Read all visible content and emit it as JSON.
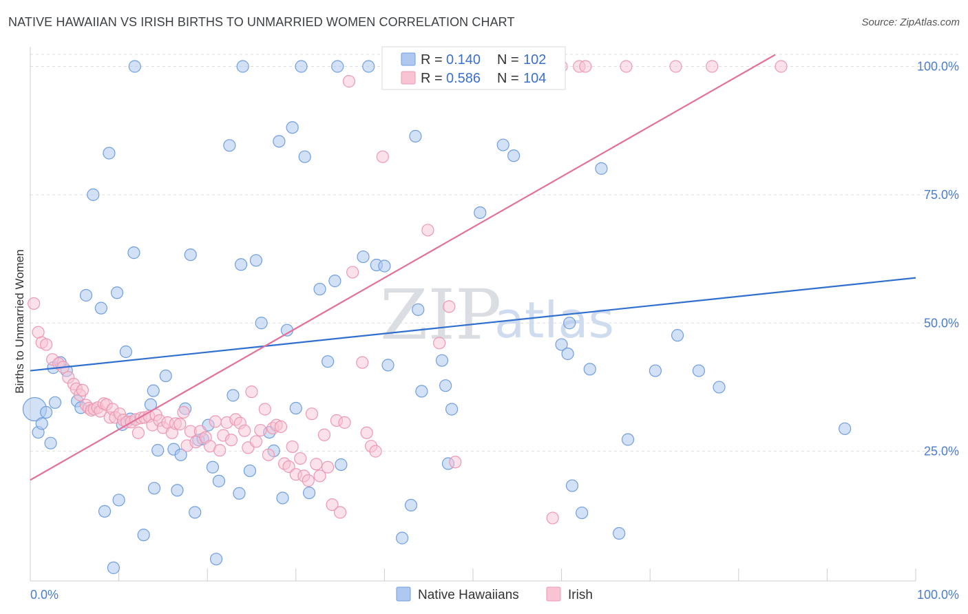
{
  "title": "NATIVE HAWAIIAN VS IRISH BIRTHS TO UNMARRIED WOMEN CORRELATION CHART",
  "source": "Source: ZipAtlas.com",
  "watermark": {
    "zip": "ZIP",
    "atlas": "atlas"
  },
  "colors": {
    "blue_fill": "#aec8ef",
    "blue_stroke": "#6f9ee0",
    "blue_line": "#2f6fcf",
    "pink_fill": "#f8c3d3",
    "pink_stroke": "#ee98b2",
    "pink_line": "#e2709a",
    "axis_text": "#4a7cd0",
    "grid": "#dddddd"
  },
  "legend": {
    "rows": [
      {
        "r_label": "R = ",
        "r_value": "0.140",
        "n_label": "N = ",
        "n_value": "102"
      },
      {
        "r_label": "R = ",
        "r_value": "0.586",
        "n_label": "N = ",
        "n_value": "104"
      }
    ]
  },
  "bottom_legend": [
    "Native Hawaiians",
    "Irish"
  ],
  "chart_data": {
    "type": "scatter",
    "title": "NATIVE HAWAIIAN VS IRISH BIRTHS TO UNMARRIED WOMEN CORRELATION CHART",
    "xlabel": "",
    "ylabel": "Births to Unmarried Women",
    "xlim": [
      0,
      100
    ],
    "ylim": [
      0,
      102
    ],
    "x_tick_labels": [
      "0.0%",
      "100.0%"
    ],
    "y_tick_labels": [
      "25.0%",
      "50.0%",
      "75.0%",
      "100.0%"
    ],
    "y_ticks": [
      25,
      50,
      75,
      100
    ],
    "grid": true,
    "legend_position": "top-center",
    "series": [
      {
        "name": "Native Hawaiians",
        "R": 0.14,
        "N": 102,
        "trend": {
          "x": [
            0,
            100
          ],
          "y": [
            40.7,
            58.8
          ]
        },
        "points": [
          [
            0.5,
            33.2
          ],
          [
            0.9,
            28.7
          ],
          [
            1.3,
            30.4
          ],
          [
            1.8,
            32.6
          ],
          [
            2.3,
            26.6
          ],
          [
            2.6,
            41.3
          ],
          [
            2.8,
            34.5
          ],
          [
            3.4,
            42.3
          ],
          [
            4.1,
            40.7
          ],
          [
            5.3,
            34.8
          ],
          [
            5.7,
            33.5
          ],
          [
            6.3,
            55.4
          ],
          [
            7.1,
            75.0
          ],
          [
            8.0,
            52.9
          ],
          [
            8.4,
            13.3
          ],
          [
            8.9,
            83.1
          ],
          [
            9.4,
            2.3
          ],
          [
            9.8,
            55.9
          ],
          [
            10.0,
            15.5
          ],
          [
            10.4,
            30.2
          ],
          [
            10.8,
            44.4
          ],
          [
            11.3,
            31.3
          ],
          [
            11.7,
            63.7
          ],
          [
            11.8,
            100.0
          ],
          [
            12.8,
            8.7
          ],
          [
            13.6,
            34.1
          ],
          [
            13.9,
            36.8
          ],
          [
            14.0,
            17.8
          ],
          [
            14.4,
            25.2
          ],
          [
            15.3,
            39.7
          ],
          [
            16.2,
            25.4
          ],
          [
            16.6,
            17.4
          ],
          [
            17.0,
            24.3
          ],
          [
            17.5,
            33.3
          ],
          [
            18.1,
            63.3
          ],
          [
            18.6,
            13.1
          ],
          [
            19.0,
            27.2
          ],
          [
            19.5,
            27.4
          ],
          [
            20.1,
            30.1
          ],
          [
            20.6,
            21.9
          ],
          [
            21.0,
            4.0
          ],
          [
            21.3,
            19.2
          ],
          [
            22.5,
            84.6
          ],
          [
            22.9,
            35.9
          ],
          [
            23.6,
            16.8
          ],
          [
            23.8,
            61.4
          ],
          [
            24.0,
            100.0
          ],
          [
            24.8,
            21.2
          ],
          [
            25.5,
            62.2
          ],
          [
            26.1,
            50.0
          ],
          [
            27.0,
            28.7
          ],
          [
            27.5,
            25.1
          ],
          [
            28.1,
            85.4
          ],
          [
            28.5,
            15.9
          ],
          [
            29.0,
            48.6
          ],
          [
            29.6,
            88.1
          ],
          [
            30.0,
            33.4
          ],
          [
            30.6,
            100.0
          ],
          [
            31.0,
            82.4
          ],
          [
            31.5,
            16.9
          ],
          [
            32.7,
            56.6
          ],
          [
            33.6,
            42.5
          ],
          [
            34.4,
            58.2
          ],
          [
            34.7,
            100.0
          ],
          [
            35.1,
            22.4
          ],
          [
            37.6,
            62.9
          ],
          [
            38.2,
            100.0
          ],
          [
            39.1,
            61.3
          ],
          [
            40.0,
            61.1
          ],
          [
            40.4,
            41.8
          ],
          [
            40.9,
            100.0
          ],
          [
            42.0,
            8.1
          ],
          [
            43.0,
            14.5
          ],
          [
            43.5,
            86.4
          ],
          [
            43.8,
            52.6
          ],
          [
            44.2,
            36.7
          ],
          [
            45.5,
            100.0
          ],
          [
            46.5,
            42.7
          ],
          [
            46.9,
            37.8
          ],
          [
            47.2,
            22.6
          ],
          [
            47.6,
            33.2
          ],
          [
            48.9,
            100.0
          ],
          [
            50.8,
            71.5
          ],
          [
            52.0,
            100.0
          ],
          [
            53.4,
            84.7
          ],
          [
            54.6,
            82.6
          ],
          [
            55.0,
            100.0
          ],
          [
            57.3,
            100.0
          ],
          [
            60.0,
            45.8
          ],
          [
            60.7,
            44.0
          ],
          [
            60.9,
            50.0
          ],
          [
            61.2,
            18.3
          ],
          [
            62.3,
            13.0
          ],
          [
            63.2,
            41.0
          ],
          [
            64.5,
            80.1
          ],
          [
            66.5,
            9.0
          ],
          [
            67.5,
            27.3
          ],
          [
            70.6,
            40.7
          ],
          [
            73.1,
            47.6
          ],
          [
            75.5,
            40.7
          ],
          [
            77.8,
            37.5
          ],
          [
            92.0,
            29.4
          ]
        ]
      },
      {
        "name": "Irish",
        "R": 0.586,
        "N": 104,
        "trend": {
          "x": [
            0,
            100
          ],
          "y": [
            19.4,
            115.2
          ]
        },
        "points": [
          [
            0.4,
            53.8
          ],
          [
            0.9,
            48.2
          ],
          [
            1.3,
            46.2
          ],
          [
            1.8,
            45.8
          ],
          [
            2.5,
            42.9
          ],
          [
            3.2,
            42.1
          ],
          [
            3.7,
            41.4
          ],
          [
            4.3,
            39.4
          ],
          [
            4.9,
            38.1
          ],
          [
            5.2,
            37.2
          ],
          [
            5.6,
            36.0
          ],
          [
            5.9,
            36.9
          ],
          [
            6.3,
            34.0
          ],
          [
            6.6,
            33.4
          ],
          [
            6.9,
            33.0
          ],
          [
            7.2,
            33.2
          ],
          [
            7.6,
            33.5
          ],
          [
            7.9,
            32.8
          ],
          [
            8.3,
            34.3
          ],
          [
            8.6,
            34.1
          ],
          [
            9.0,
            31.6
          ],
          [
            9.3,
            33.2
          ],
          [
            9.6,
            31.6
          ],
          [
            10.1,
            32.3
          ],
          [
            10.5,
            31.1
          ],
          [
            10.9,
            30.7
          ],
          [
            11.4,
            30.7
          ],
          [
            11.9,
            31.2
          ],
          [
            12.2,
            28.6
          ],
          [
            12.5,
            31.5
          ],
          [
            12.9,
            31.6
          ],
          [
            13.4,
            31.8
          ],
          [
            13.8,
            30.1
          ],
          [
            14.2,
            32.1
          ],
          [
            14.6,
            31.0
          ],
          [
            15.0,
            29.6
          ],
          [
            15.5,
            30.6
          ],
          [
            16.0,
            28.6
          ],
          [
            16.4,
            30.4
          ],
          [
            16.9,
            30.3
          ],
          [
            17.3,
            32.6
          ],
          [
            17.7,
            26.1
          ],
          [
            18.1,
            28.9
          ],
          [
            18.7,
            26.8
          ],
          [
            19.2,
            28.9
          ],
          [
            19.8,
            27.7
          ],
          [
            20.3,
            26.0
          ],
          [
            20.9,
            30.8
          ],
          [
            21.4,
            25.2
          ],
          [
            21.8,
            28.1
          ],
          [
            22.2,
            30.6
          ],
          [
            22.7,
            27.2
          ],
          [
            23.2,
            31.2
          ],
          [
            23.7,
            30.5
          ],
          [
            24.2,
            29.0
          ],
          [
            24.6,
            25.7
          ],
          [
            25.0,
            36.6
          ],
          [
            25.5,
            26.9
          ],
          [
            26.0,
            29.1
          ],
          [
            26.5,
            33.2
          ],
          [
            26.9,
            24.3
          ],
          [
            27.4,
            29.5
          ],
          [
            27.8,
            30.1
          ],
          [
            28.3,
            29.8
          ],
          [
            28.7,
            22.6
          ],
          [
            29.2,
            22.0
          ],
          [
            29.6,
            25.9
          ],
          [
            30.0,
            20.5
          ],
          [
            30.5,
            23.6
          ],
          [
            30.9,
            20.2
          ],
          [
            31.4,
            19.3
          ],
          [
            31.8,
            32.3
          ],
          [
            32.3,
            22.5
          ],
          [
            32.7,
            20.2
          ],
          [
            33.2,
            28.2
          ],
          [
            33.6,
            21.9
          ],
          [
            34.1,
            14.6
          ],
          [
            34.6,
            31.0
          ],
          [
            35.0,
            13.1
          ],
          [
            35.5,
            30.6
          ],
          [
            36.0,
            97.1
          ],
          [
            36.4,
            59.9
          ],
          [
            37.5,
            42.3
          ],
          [
            38.0,
            28.6
          ],
          [
            38.5,
            26.0
          ],
          [
            39.0,
            25.0
          ],
          [
            39.8,
            82.4
          ],
          [
            40.8,
            100.0
          ],
          [
            42.3,
            100.0
          ],
          [
            44.9,
            68.1
          ],
          [
            46.2,
            46.1
          ],
          [
            47.3,
            53.2
          ],
          [
            48.0,
            22.9
          ],
          [
            50.1,
            100.0
          ],
          [
            53.3,
            100.0
          ],
          [
            57.3,
            100.0
          ],
          [
            60.0,
            100.0
          ],
          [
            62.0,
            100.0
          ],
          [
            62.7,
            100.0
          ],
          [
            67.3,
            100.0
          ],
          [
            72.9,
            100.0
          ],
          [
            77.0,
            100.0
          ],
          [
            84.8,
            100.0
          ],
          [
            59.0,
            12.0
          ]
        ]
      }
    ]
  }
}
